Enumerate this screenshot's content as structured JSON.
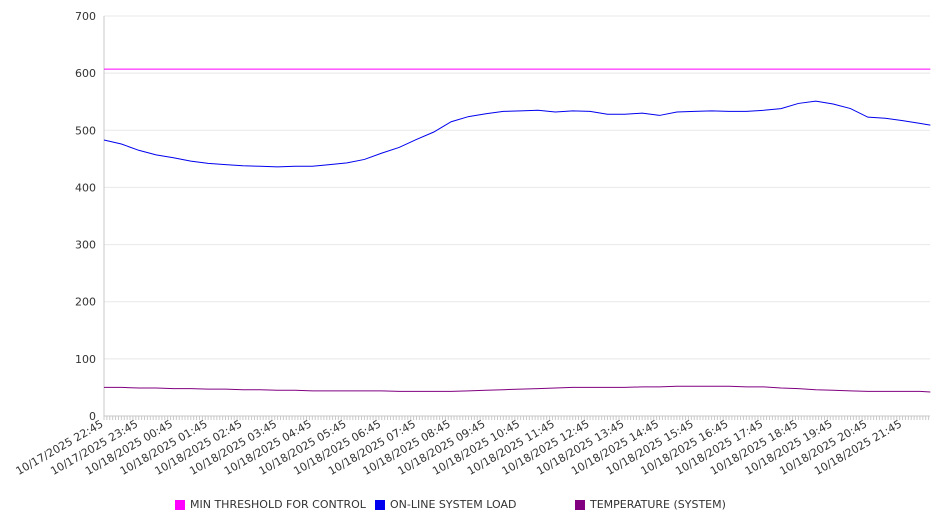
{
  "chart_data": {
    "type": "line",
    "title": "",
    "xlabel": "",
    "ylabel": "",
    "ylim": [
      0,
      700
    ],
    "yticks": [
      0,
      100,
      200,
      300,
      400,
      500,
      600,
      700
    ],
    "x_unit": "hours since 10/17/2025 22:45",
    "xlim": [
      0,
      23.8
    ],
    "xtick_labels": [
      "10/17/2025 22:45",
      "10/17/2025 23:45",
      "10/18/2025 00:45",
      "10/18/2025 01:45",
      "10/18/2025 02:45",
      "10/18/2025 03:45",
      "10/18/2025 04:45",
      "10/18/2025 05:45",
      "10/18/2025 06:45",
      "10/18/2025 07:45",
      "10/18/2025 08:45",
      "10/18/2025 09:45",
      "10/18/2025 10:45",
      "10/18/2025 11:45",
      "10/18/2025 12:45",
      "10/18/2025 13:45",
      "10/18/2025 14:45",
      "10/18/2025 15:45",
      "10/18/2025 16:45",
      "10/18/2025 17:45",
      "10/18/2025 18:45",
      "10/18/2025 19:45",
      "10/18/2025 20:45",
      "10/18/2025 21:45"
    ],
    "grid": true,
    "legend_position": "bottom",
    "series": [
      {
        "name": "MIN THRESHOLD FOR CONTROL",
        "color": "#ff00ff",
        "x_step": 23.8,
        "values": [
          607,
          607
        ]
      },
      {
        "name": "ON-LINE SYSTEM LOAD",
        "color": "#0000ee",
        "x_step": 0.5,
        "values": [
          483,
          476,
          465,
          457,
          452,
          446,
          442,
          440,
          438,
          437,
          436,
          437,
          437,
          440,
          443,
          449,
          460,
          470,
          484,
          497,
          515,
          524,
          529,
          533,
          534,
          535,
          532,
          534,
          533,
          528,
          528,
          530,
          526,
          532,
          533,
          534,
          533,
          533,
          535,
          538,
          547,
          551,
          546,
          538,
          523,
          521,
          517,
          512
        ]
      },
      {
        "name": "TEMPERATURE (SYSTEM)",
        "color": "#800080",
        "x_step": 0.5,
        "values": [
          50,
          50,
          49,
          49,
          48,
          48,
          47,
          47,
          46,
          46,
          45,
          45,
          44,
          44,
          44,
          44,
          44,
          43,
          43,
          43,
          43,
          44,
          45,
          46,
          47,
          48,
          49,
          50,
          50,
          50,
          50,
          51,
          51,
          52,
          52,
          52,
          52,
          51,
          51,
          49,
          48,
          46,
          45,
          44,
          43,
          43,
          43,
          43
        ]
      }
    ]
  }
}
